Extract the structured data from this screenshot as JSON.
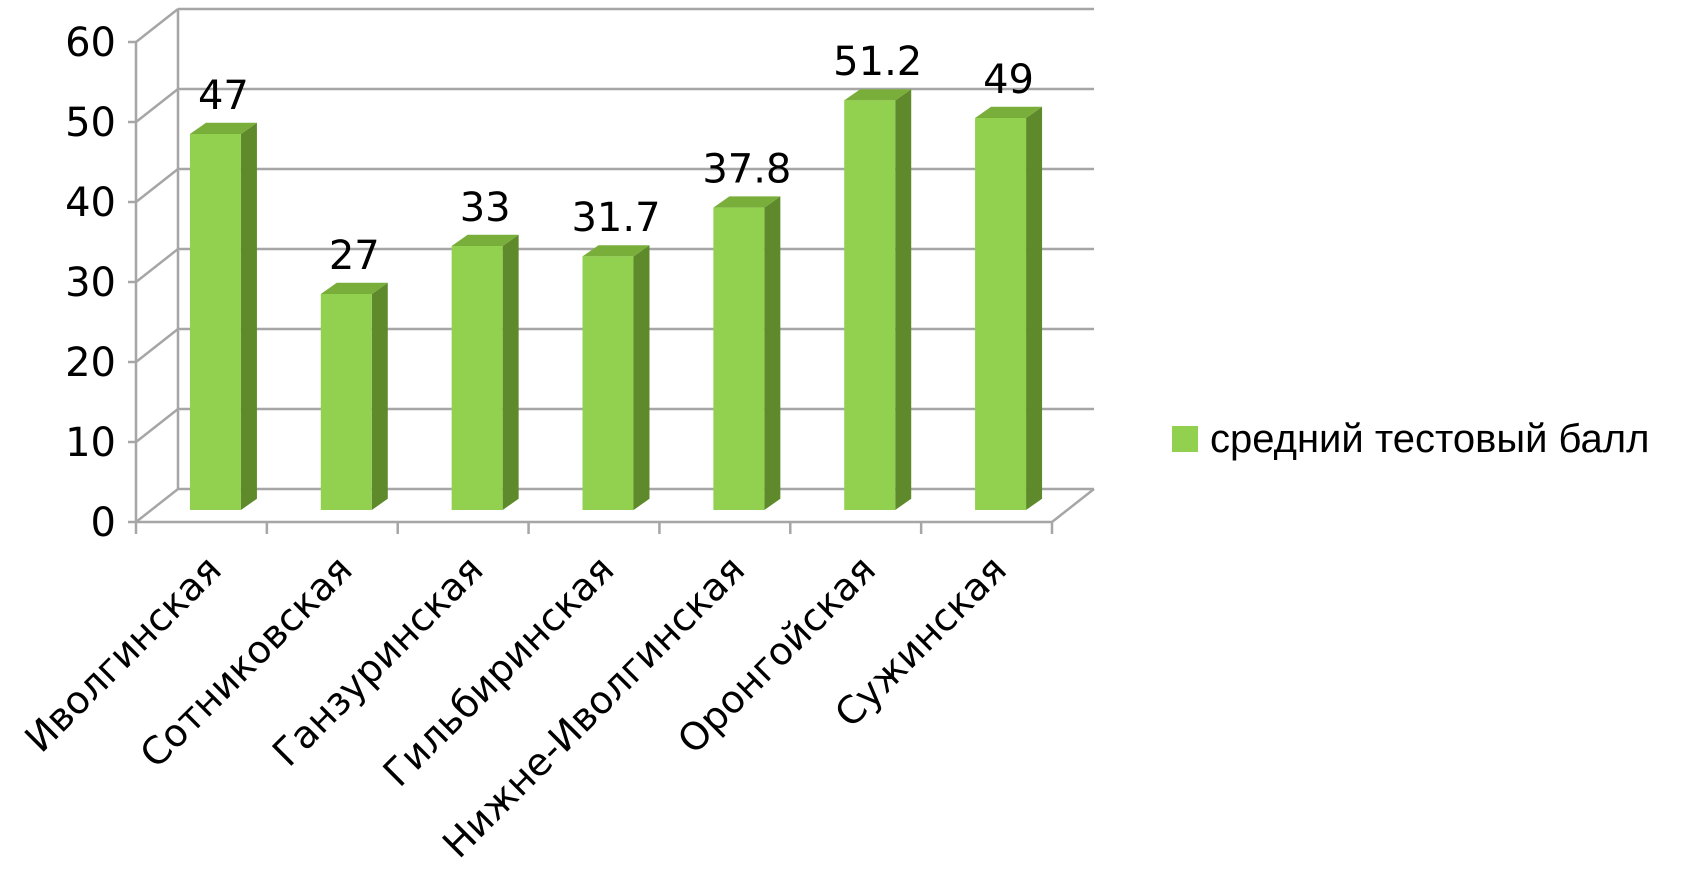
{
  "chart_data": {
    "type": "bar",
    "title": "",
    "xlabel": "",
    "ylabel": "",
    "categories": [
      "Иволгинская",
      "Сотниковская",
      "Ганзуринская",
      "Гильбиринская",
      "Нижне-Иволгинская",
      "Оронгойская",
      "Сужинская"
    ],
    "series": [
      {
        "name": "средний тестовый балл",
        "values": [
          47,
          27,
          33,
          31.7,
          37.8,
          51.2,
          49
        ],
        "data_labels": [
          "47",
          "27",
          "33",
          "31.7",
          "37.8",
          "51.2",
          "49"
        ],
        "color": "#92d050",
        "side_color": "#5f8a2b",
        "top_color": "#7aae3b"
      }
    ],
    "ylim": [
      0,
      60
    ],
    "y_ticks": [
      "0",
      "10",
      "20",
      "30",
      "40",
      "50",
      "60"
    ],
    "grid": true,
    "legend_position": "right",
    "style": "3d-column"
  }
}
